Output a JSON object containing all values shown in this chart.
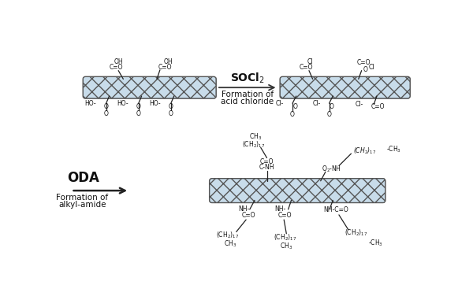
{
  "bg_color": "#ffffff",
  "tube_fc": "#c8dcea",
  "tube_ec": "#555555",
  "lc": "#222222",
  "tc": "#111111",
  "reagent1": "SOCl$_2$",
  "label1a": "Formation of",
  "label1b": "acid chloride",
  "reagent2": "ODA",
  "label2a": "Formation of",
  "label2b": "alkyl-amide"
}
